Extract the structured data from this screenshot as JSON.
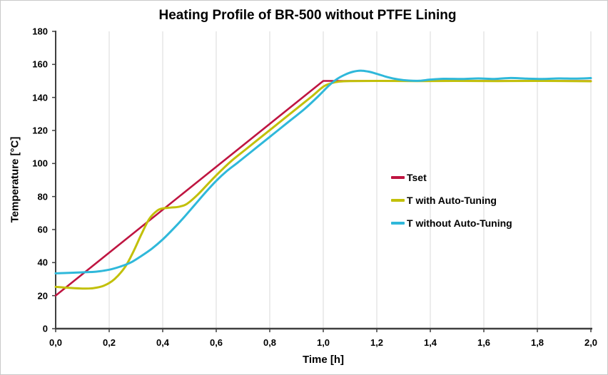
{
  "window": {
    "background": "#ffffff",
    "border_color": "#c9c9c9"
  },
  "chart_data": {
    "type": "line",
    "title": "Heating Profile of BR-500 without PTFE Lining",
    "xlabel": "Time [h]",
    "ylabel": "Temperature [°C]",
    "xlim": [
      0,
      2
    ],
    "ylim": [
      0,
      180
    ],
    "x_ticks": [
      0,
      0.2,
      0.4,
      0.6,
      0.8,
      1.0,
      1.2,
      1.4,
      1.6,
      1.8,
      2.0
    ],
    "x_tick_labels": [
      "0,0",
      "0,2",
      "0,4",
      "0,6",
      "0,8",
      "1,0",
      "1,2",
      "1,4",
      "1,6",
      "1,8",
      "2,0"
    ],
    "y_ticks": [
      0,
      20,
      40,
      60,
      80,
      100,
      120,
      140,
      160,
      180
    ],
    "y_tick_labels": [
      "0",
      "20",
      "40",
      "60",
      "80",
      "100",
      "120",
      "140",
      "160",
      "180"
    ],
    "grid": "vertical-only",
    "gridline_color": "#d9d9d9",
    "axis_color": "#3f3f3f",
    "legend_position": "middle-right",
    "series": [
      {
        "name": "Tset",
        "color": "#bf1541",
        "width": 2.6,
        "smooth": false,
        "points": [
          [
            0,
            20
          ],
          [
            1.0,
            150
          ],
          [
            2.0,
            150
          ]
        ]
      },
      {
        "name": "T with Auto-Tuning",
        "color": "#c2c00a",
        "width": 3,
        "smooth": true,
        "points": [
          [
            0,
            25.3
          ],
          [
            0.05,
            24.7
          ],
          [
            0.1,
            24.3
          ],
          [
            0.14,
            24.5
          ],
          [
            0.18,
            26
          ],
          [
            0.22,
            30
          ],
          [
            0.26,
            37.5
          ],
          [
            0.29,
            46.5
          ],
          [
            0.32,
            57
          ],
          [
            0.35,
            66.5
          ],
          [
            0.38,
            71.5
          ],
          [
            0.4,
            72.8
          ],
          [
            0.43,
            73.3
          ],
          [
            0.46,
            73.8
          ],
          [
            0.49,
            75.5
          ],
          [
            0.53,
            81
          ],
          [
            0.58,
            89.5
          ],
          [
            0.62,
            96
          ],
          [
            0.66,
            102
          ],
          [
            0.71,
            108.5
          ],
          [
            0.76,
            115
          ],
          [
            0.81,
            121.5
          ],
          [
            0.86,
            128
          ],
          [
            0.91,
            134.5
          ],
          [
            0.96,
            141
          ],
          [
            1.0,
            146.5
          ],
          [
            1.03,
            148.6
          ],
          [
            1.06,
            149.6
          ],
          [
            1.1,
            149.9
          ],
          [
            1.2,
            150
          ],
          [
            1.35,
            149.9
          ],
          [
            1.5,
            150
          ],
          [
            1.65,
            149.9
          ],
          [
            1.8,
            150
          ],
          [
            2.0,
            149.8
          ]
        ]
      },
      {
        "name": "T without Auto-Tuning",
        "color": "#2fb8da",
        "width": 3,
        "smooth": true,
        "points": [
          [
            0,
            33.5
          ],
          [
            0.05,
            33.8
          ],
          [
            0.1,
            34.1
          ],
          [
            0.15,
            34.5
          ],
          [
            0.2,
            35.7
          ],
          [
            0.24,
            37.5
          ],
          [
            0.28,
            40
          ],
          [
            0.32,
            44
          ],
          [
            0.36,
            48.5
          ],
          [
            0.4,
            54
          ],
          [
            0.44,
            60.5
          ],
          [
            0.48,
            67.5
          ],
          [
            0.52,
            75
          ],
          [
            0.56,
            82.5
          ],
          [
            0.6,
            89.5
          ],
          [
            0.64,
            95.5
          ],
          [
            0.68,
            100.5
          ],
          [
            0.73,
            107
          ],
          [
            0.78,
            113.5
          ],
          [
            0.83,
            120
          ],
          [
            0.88,
            126.5
          ],
          [
            0.93,
            133
          ],
          [
            0.98,
            140.5
          ],
          [
            1.02,
            147
          ],
          [
            1.05,
            151
          ],
          [
            1.08,
            153.7
          ],
          [
            1.11,
            155.5
          ],
          [
            1.14,
            156.2
          ],
          [
            1.17,
            155.6
          ],
          [
            1.2,
            154.3
          ],
          [
            1.24,
            152.3
          ],
          [
            1.28,
            150.9
          ],
          [
            1.32,
            150.2
          ],
          [
            1.36,
            150.1
          ],
          [
            1.4,
            150.8
          ],
          [
            1.45,
            151.3
          ],
          [
            1.52,
            151.2
          ],
          [
            1.58,
            151.5
          ],
          [
            1.64,
            151.2
          ],
          [
            1.7,
            151.8
          ],
          [
            1.76,
            151.4
          ],
          [
            1.82,
            151.2
          ],
          [
            1.88,
            151.5
          ],
          [
            1.94,
            151.4
          ],
          [
            2.0,
            151.7
          ]
        ]
      }
    ]
  }
}
